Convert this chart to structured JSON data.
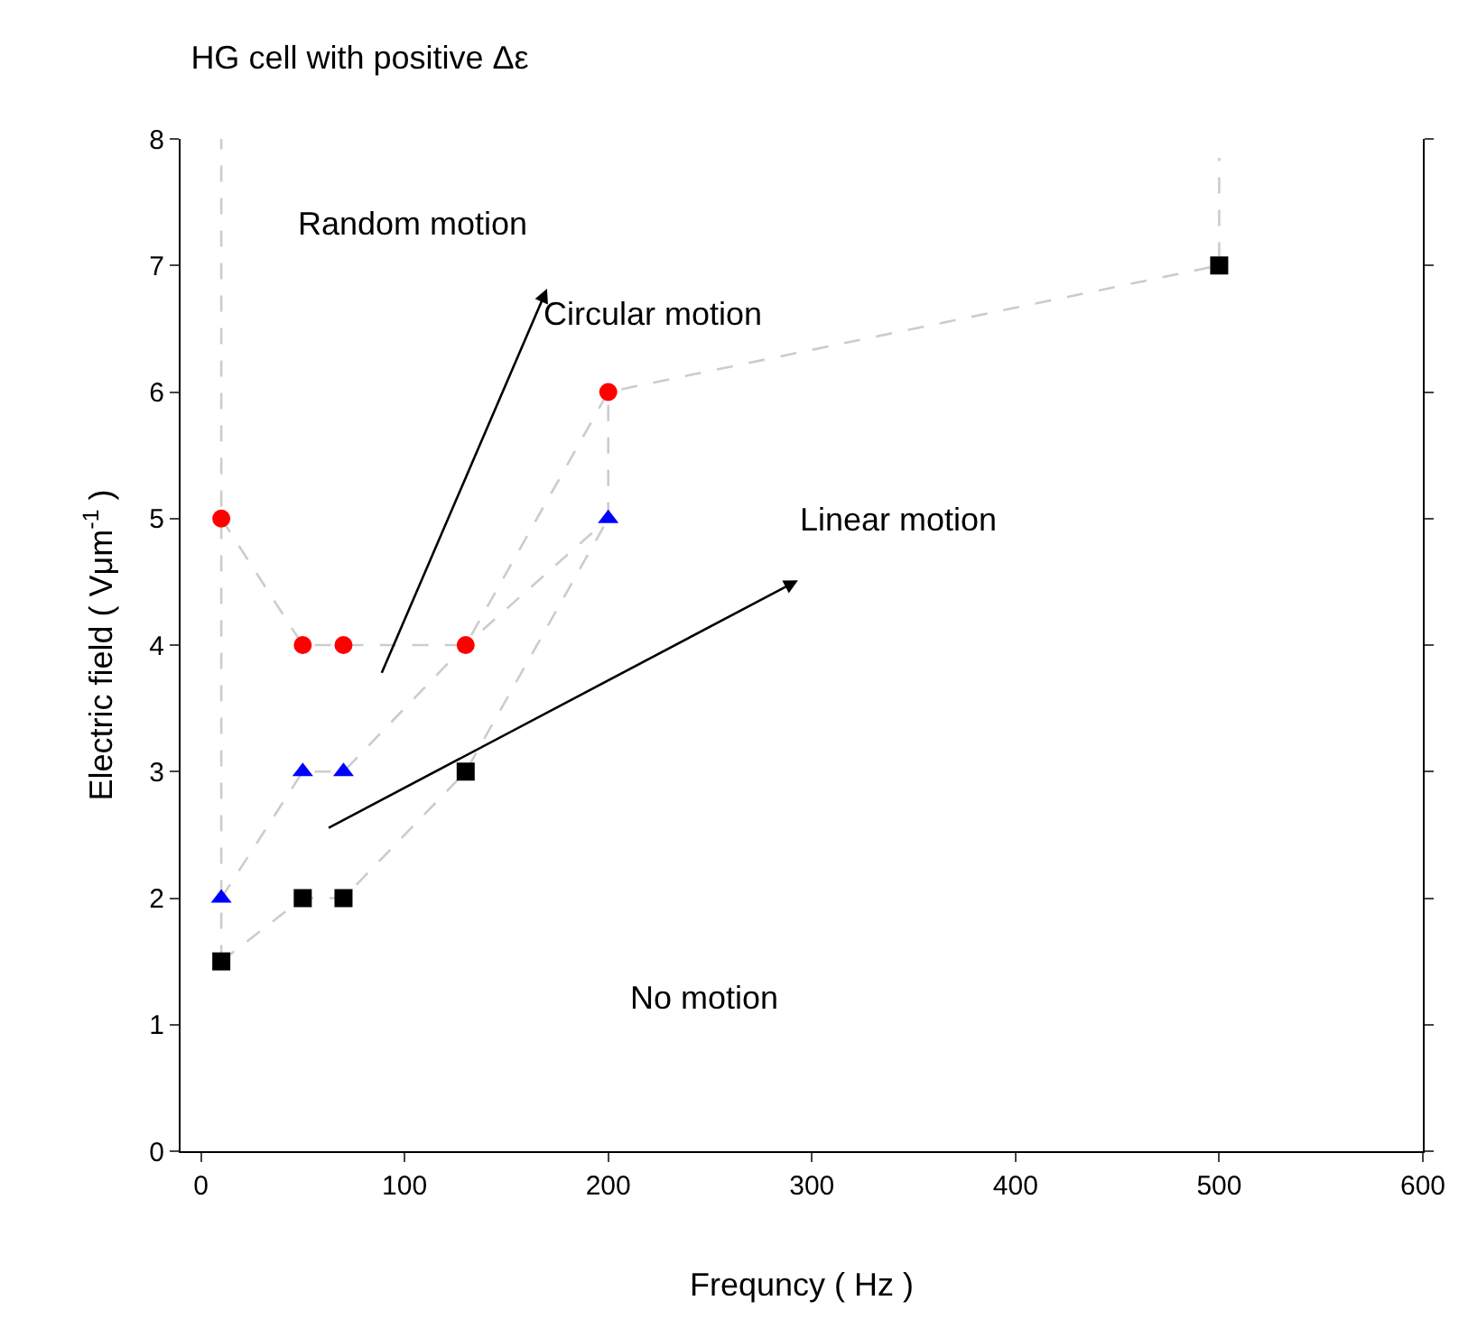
{
  "chart_data": {
    "type": "scatter",
    "title": "HG cell with positive Δε",
    "xlabel": "Frequncy ( Hz )",
    "ylabel": "Electric field ( Vμm$^{-1}$ )",
    "xlim": [
      -10,
      600
    ],
    "xticks": [
      0,
      100,
      200,
      300,
      400,
      500,
      600
    ],
    "ylim": [
      0,
      8
    ],
    "yticks": [
      0,
      1,
      2,
      3,
      4,
      5,
      6,
      7,
      8
    ],
    "series": [
      {
        "type": "line",
        "color": "#cccccc",
        "line_style": "dashed",
        "marker": "none",
        "x": [
          10,
          10
        ],
        "values": [
          1.5,
          8
        ]
      },
      {
        "type": "line",
        "color": "#cccccc",
        "line_style": "dashed",
        "marker": "none",
        "x": [
          10,
          50,
          70,
          130,
          200
        ],
        "values": [
          1.5,
          2,
          2,
          3,
          5
        ]
      },
      {
        "type": "line",
        "color": "#cccccc",
        "line_style": "dashed",
        "marker": "none",
        "x": [
          10,
          50,
          70,
          130,
          200
        ],
        "values": [
          2,
          3,
          3,
          4,
          5
        ]
      },
      {
        "type": "line",
        "color": "#cccccc",
        "line_style": "dashed",
        "marker": "none",
        "x": [
          10,
          50,
          70,
          130,
          200,
          500,
          500
        ],
        "values": [
          5,
          4,
          4,
          4,
          6,
          7,
          7.85
        ]
      },
      {
        "type": "line",
        "color": "#cccccc",
        "line_style": "dashed",
        "marker": "none",
        "x": [
          200,
          200
        ],
        "values": [
          5,
          6
        ]
      },
      {
        "color": "#000000",
        "marker": "square",
        "x": [
          10,
          50,
          70,
          130,
          500
        ],
        "values": [
          1.5,
          2,
          2,
          3,
          7
        ]
      },
      {
        "color": "#0000ff",
        "marker": "triangle",
        "x": [
          10,
          50,
          70,
          200
        ],
        "values": [
          2,
          3,
          3,
          5
        ]
      },
      {
        "color": "#ff0000",
        "marker": "circle",
        "x": [
          10,
          50,
          70,
          130,
          200
        ],
        "values": [
          5,
          4,
          4,
          4,
          6
        ]
      }
    ],
    "annotations": [
      "Random motion",
      "Circular motion",
      "Linear motion",
      "No motion"
    ]
  }
}
